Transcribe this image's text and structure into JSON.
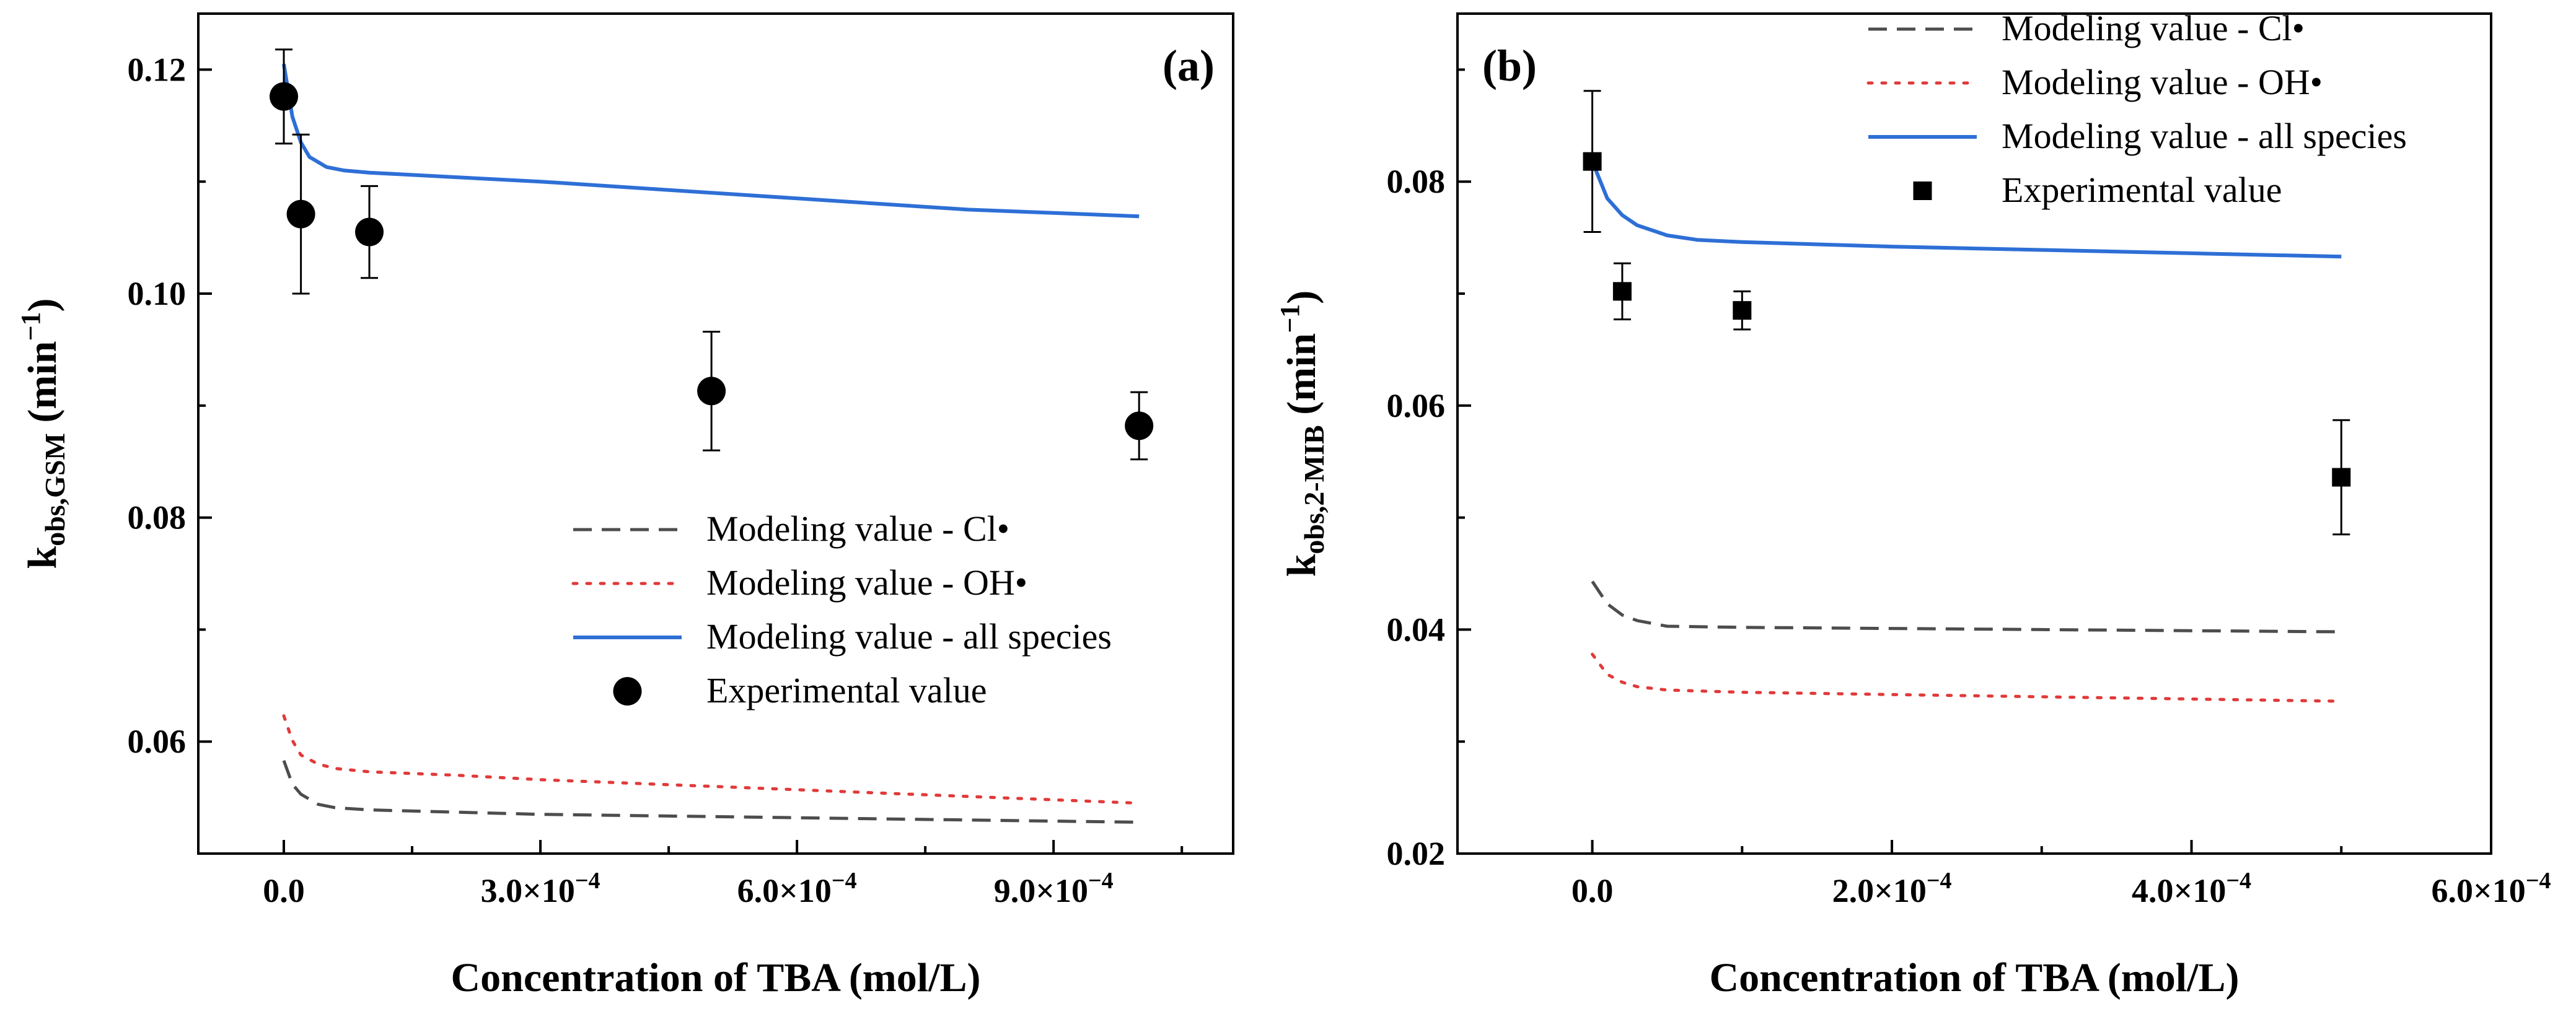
{
  "chart_data": [
    {
      "type": "line",
      "panel_label": "(a)",
      "xlabel": "Concentration of TBA (mol/L)",
      "ylabel": {
        "main": "k",
        "sub": "obs,GSM",
        "unit_open": " (min",
        "sup": "−1",
        "unit_close": ")"
      },
      "xlim": [
        -0.0001,
        0.00111
      ],
      "ylim": [
        0.05,
        0.125
      ],
      "xticks": [
        0,
        0.0003,
        0.0006,
        0.0009
      ],
      "xtick_labels": [
        "0.0",
        "3.0×10",
        "6.0×10",
        "9.0×10"
      ],
      "xtick_exps": [
        "",
        "−4",
        "−4",
        "−4"
      ],
      "yticks": [
        0.06,
        0.08,
        0.1,
        0.12
      ],
      "ytick_labels": [
        "0.06",
        "0.08",
        "0.10",
        "0.12"
      ],
      "legend_position": "lower-right",
      "series": [
        {
          "name": "Modeling value - Cl•",
          "style": "dashed",
          "color": "#4d4d4d",
          "x": [
            0,
            1e-05,
            2e-05,
            4e-05,
            6e-05,
            0.0001,
            0.0002,
            0.0003,
            0.0004,
            0.0005,
            0.0006,
            0.0007,
            0.0008,
            0.0009,
            0.001
          ],
          "y": [
            0.0583,
            0.0562,
            0.0553,
            0.0544,
            0.0541,
            0.0539,
            0.0537,
            0.0535,
            0.0534,
            0.0533,
            0.0532,
            0.0531,
            0.053,
            0.0529,
            0.0528
          ]
        },
        {
          "name": "Modeling value - OH•",
          "style": "dotted",
          "color": "#e03a3a",
          "x": [
            0,
            1e-05,
            2e-05,
            4e-05,
            6e-05,
            0.0001,
            0.0002,
            0.0003,
            0.0004,
            0.0005,
            0.0006,
            0.0007,
            0.0008,
            0.0009,
            0.001
          ],
          "y": [
            0.0623,
            0.0601,
            0.0588,
            0.058,
            0.0576,
            0.0573,
            0.057,
            0.0566,
            0.0563,
            0.056,
            0.0557,
            0.0554,
            0.0551,
            0.0548,
            0.0545
          ]
        },
        {
          "name": "Modeling value - all species",
          "style": "solid",
          "color": "#2e6fd6",
          "x": [
            0,
            1e-05,
            2e-05,
            3e-05,
            5e-05,
            7e-05,
            0.0001,
            0.0002,
            0.0003,
            0.0004,
            0.0005,
            0.0006,
            0.0007,
            0.0008,
            0.0009,
            0.001
          ],
          "y": [
            0.1205,
            0.1158,
            0.1135,
            0.1122,
            0.1113,
            0.111,
            0.1108,
            0.1104,
            0.11,
            0.1095,
            0.109,
            0.1085,
            0.108,
            0.1075,
            0.1072,
            0.1069
          ]
        },
        {
          "name": "Experimental value",
          "style": "marker-circle",
          "color": "#000000",
          "x": [
            0,
            2e-05,
            0.0001,
            0.0005,
            0.001
          ],
          "y": [
            0.1176,
            0.1071,
            0.1055,
            0.0913,
            0.0882
          ],
          "err": [
            0.0042,
            0.0071,
            0.0041,
            0.0053,
            0.003
          ]
        }
      ]
    },
    {
      "type": "line",
      "panel_label": "(b)",
      "xlabel": "Concentration of TBA (mol/L)",
      "ylabel": {
        "main": "k",
        "sub": "obs,2-MIB",
        "unit_open": " (min",
        "sup": "−1",
        "unit_close": ")"
      },
      "xlim": [
        -9e-05,
        0.0006
      ],
      "ylim": [
        0.02,
        0.095
      ],
      "xticks": [
        0,
        0.0002,
        0.0004,
        0.0006
      ],
      "xtick_labels": [
        "0.0",
        "2.0×10",
        "4.0×10",
        "6.0×10"
      ],
      "xtick_exps": [
        "",
        "−4",
        "−4",
        "−4"
      ],
      "yticks": [
        0.02,
        0.04,
        0.06,
        0.08
      ],
      "ytick_labels": [
        "0.02",
        "0.04",
        "0.06",
        "0.08"
      ],
      "legend_position": "top-right",
      "series": [
        {
          "name": "Modeling value - Cl•",
          "style": "dashed",
          "color": "#4d4d4d",
          "x": [
            0,
            1e-05,
            2e-05,
            3e-05,
            5e-05,
            0.0001,
            0.0002,
            0.0003,
            0.0004,
            0.0005
          ],
          "y": [
            0.0443,
            0.0423,
            0.0413,
            0.0408,
            0.0403,
            0.0402,
            0.0401,
            0.04,
            0.0399,
            0.0398
          ]
        },
        {
          "name": "Modeling value - OH•",
          "style": "dotted",
          "color": "#e03a3a",
          "x": [
            0,
            1e-05,
            2e-05,
            3e-05,
            5e-05,
            0.0001,
            0.0002,
            0.0003,
            0.0004,
            0.0005
          ],
          "y": [
            0.0378,
            0.036,
            0.0353,
            0.0349,
            0.0346,
            0.0344,
            0.0342,
            0.034,
            0.0338,
            0.0336
          ]
        },
        {
          "name": "Modeling value - all species",
          "style": "solid",
          "color": "#2e6fd6",
          "x": [
            0,
            1e-05,
            2e-05,
            3e-05,
            5e-05,
            7e-05,
            0.0001,
            0.0002,
            0.0003,
            0.0004,
            0.0005
          ],
          "y": [
            0.0818,
            0.0785,
            0.077,
            0.0761,
            0.0752,
            0.0748,
            0.0746,
            0.0742,
            0.0739,
            0.0736,
            0.0733
          ]
        },
        {
          "name": "Experimental value",
          "style": "marker-square",
          "color": "#000000",
          "x": [
            0,
            2e-05,
            0.0001,
            0.0005
          ],
          "y": [
            0.0818,
            0.0702,
            0.0685,
            0.0536
          ],
          "err": [
            0.0063,
            0.0025,
            0.0017,
            0.0051
          ]
        }
      ]
    }
  ]
}
